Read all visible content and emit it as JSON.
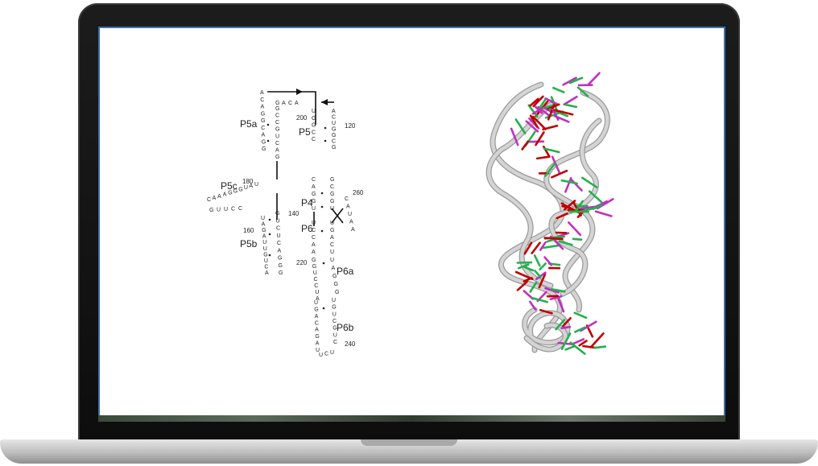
{
  "diagram": {
    "labels": {
      "p5a": "P5a",
      "p5": "P5",
      "p5c": "P5c",
      "p4": "P4",
      "p6": "P6",
      "p5b": "P5b",
      "p6a": "P6a",
      "p6b": "P6b"
    },
    "numbers": {
      "n120": "120",
      "n140": "140",
      "n160": "160",
      "n180": "180",
      "n200": "200",
      "n220": "220",
      "n240": "240",
      "n260": "260"
    },
    "sequences": {
      "top_loop": "GACA",
      "p5a_left": "ACAGGCAGG",
      "p5a_right": "GCCGUCAG",
      "p5_right": "ACUGGCG",
      "p5c_loop": "CAAAGGGUAU",
      "p5c_lower": "GUUCC",
      "p5b_left": "UAGAUUGUCA",
      "p5b_right": "GUCUCAGGG",
      "center_left": "UGGCC",
      "p4_left": "CAGGU",
      "p4_right": "GCGGU",
      "p6_left": "UCCAA",
      "p6_right": "UGACU",
      "p6a_left": "GGUCCUA",
      "p6a_right": "UAGGG",
      "p6b_left": "UGACAGAU",
      "p6b_right": "UGUCGUC",
      "bottom_loop": "UCU",
      "j_260": "CAUAA"
    }
  },
  "colors": {
    "ribbon": "#d4d4d4",
    "base_green": "#22b14c",
    "base_red": "#c00000",
    "base_magenta": "#c030c0"
  }
}
